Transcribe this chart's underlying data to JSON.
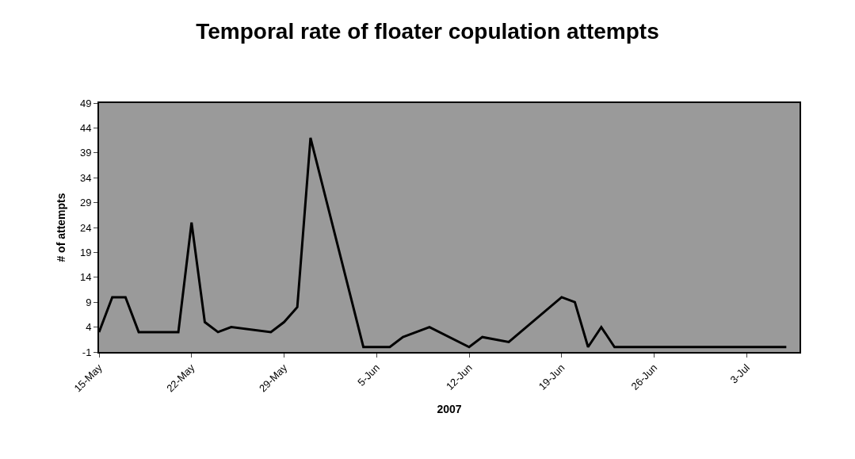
{
  "chart_data": {
    "type": "line",
    "title": "Temporal rate of floater copulation attempts",
    "xlabel": "2007",
    "ylabel": "# of attempts",
    "x": [
      "2007-05-15",
      "2007-05-16",
      "2007-05-17",
      "2007-05-18",
      "2007-05-21",
      "2007-05-22",
      "2007-05-23",
      "2007-05-24",
      "2007-05-25",
      "2007-05-28",
      "2007-05-29",
      "2007-05-30",
      "2007-05-31",
      "2007-06-04",
      "2007-06-06",
      "2007-06-07",
      "2007-06-09",
      "2007-06-12",
      "2007-06-13",
      "2007-06-15",
      "2007-06-19",
      "2007-06-20",
      "2007-06-21",
      "2007-06-22",
      "2007-06-23",
      "2007-07-06"
    ],
    "series": [
      {
        "color": "#000000",
        "values": [
          3,
          10,
          10,
          3,
          3,
          25,
          5,
          3,
          4,
          3,
          5,
          8,
          42,
          0,
          0,
          2,
          4,
          0,
          2,
          1,
          10,
          9,
          0,
          4,
          0,
          0
        ]
      }
    ],
    "xlim": [
      "2007-05-15",
      "2007-07-07"
    ],
    "xticks": [
      {
        "value": "2007-05-15",
        "label": "15-May"
      },
      {
        "value": "2007-05-22",
        "label": "22-May"
      },
      {
        "value": "2007-05-29",
        "label": "29-May"
      },
      {
        "value": "2007-06-05",
        "label": "5-Jun"
      },
      {
        "value": "2007-06-12",
        "label": "12-Jun"
      },
      {
        "value": "2007-06-19",
        "label": "19-Jun"
      },
      {
        "value": "2007-06-26",
        "label": "26-Jun"
      },
      {
        "value": "2007-07-03",
        "label": "3-Jul"
      }
    ],
    "ylim": [
      -1,
      49
    ],
    "yticks": [
      -1,
      4,
      9,
      14,
      19,
      24,
      29,
      34,
      39,
      44,
      49
    ],
    "grid": false,
    "marker": "none",
    "line_style": "solid"
  }
}
